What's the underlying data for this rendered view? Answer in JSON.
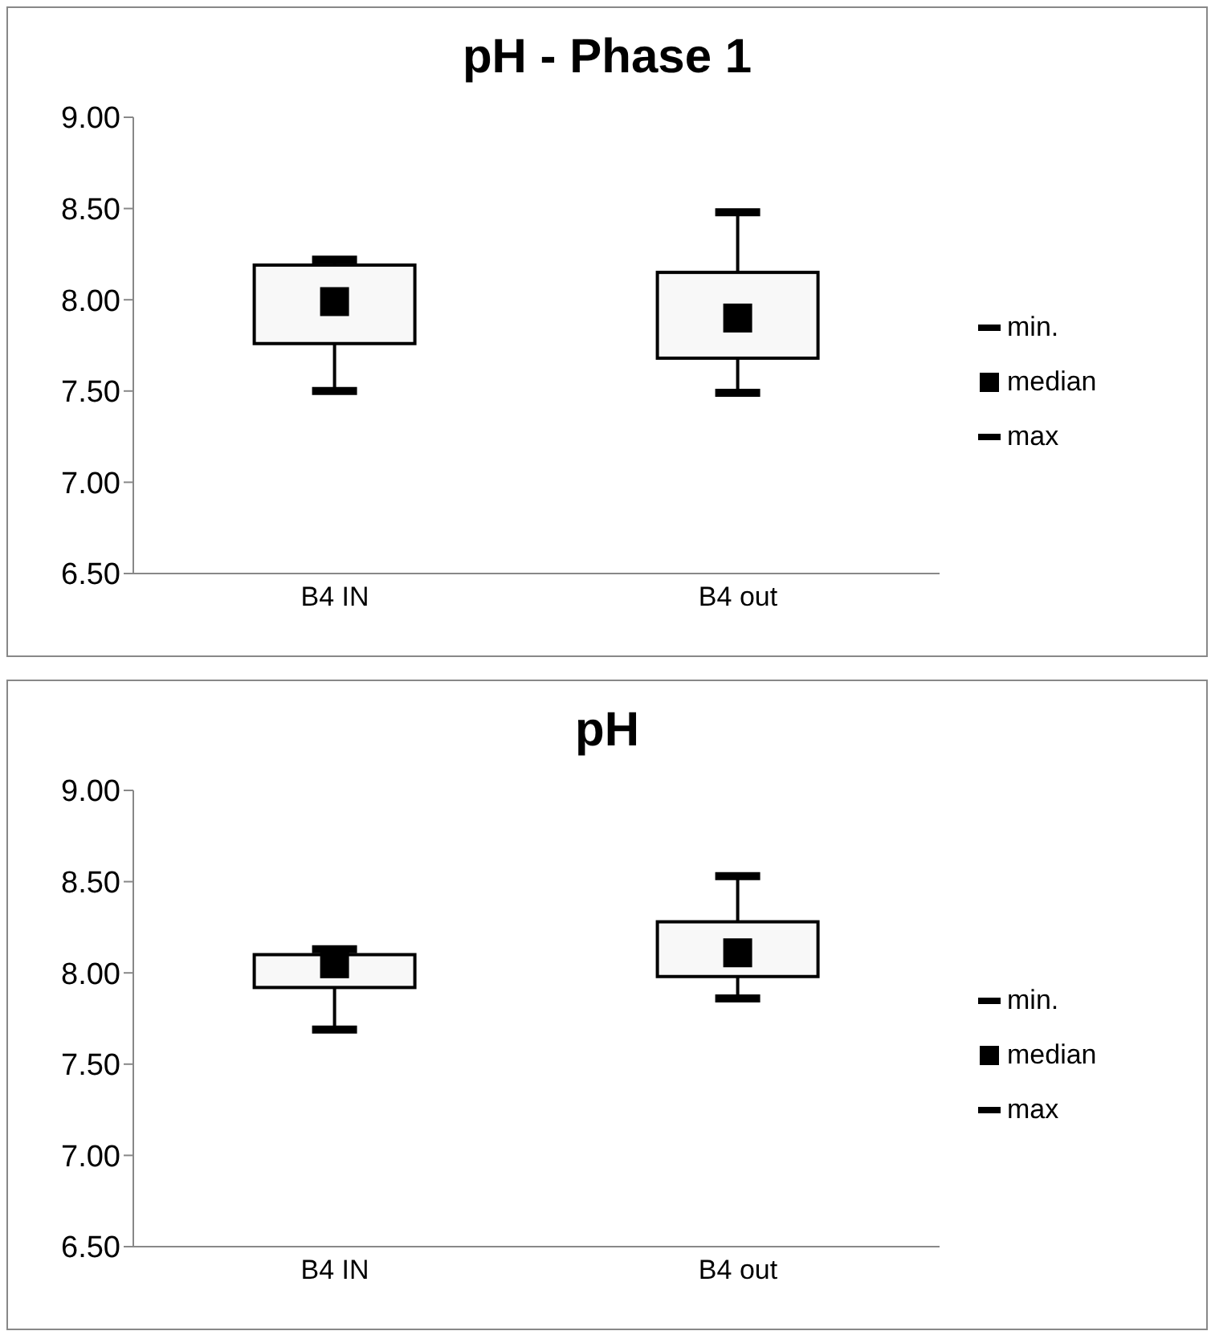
{
  "chart_data": [
    {
      "type": "box",
      "title": "pH - Phase 1",
      "categories": [
        "B4 IN",
        "B4 out"
      ],
      "boxes": [
        {
          "low": 7.5,
          "q1": 7.76,
          "median": 7.99,
          "q3": 8.19,
          "high": 8.22
        },
        {
          "low": 7.49,
          "q1": 7.68,
          "median": 7.9,
          "q3": 8.15,
          "high": 8.48
        }
      ],
      "annotations": [
        "min.",
        "median",
        "max"
      ],
      "color": "#f8f8f8",
      "ylim": [
        6.5,
        9
      ],
      "yticks": [
        {
          "value": 6.5,
          "label": "6.50"
        },
        {
          "value": 7,
          "label": "7.00"
        },
        {
          "value": 7.5,
          "label": "7.50"
        },
        {
          "value": 8,
          "label": "8.00"
        },
        {
          "value": 8.5,
          "label": "8.50"
        },
        {
          "value": 9,
          "label": "9.00"
        }
      ],
      "grid": false
    },
    {
      "type": "box",
      "title": "pH",
      "categories": [
        "B4 IN",
        "B4 out"
      ],
      "boxes": [
        {
          "low": 7.69,
          "q1": 7.92,
          "median": 8.05,
          "q3": 8.1,
          "high": 8.13
        },
        {
          "low": 7.86,
          "q1": 7.98,
          "median": 8.11,
          "q3": 8.28,
          "high": 8.53
        }
      ],
      "annotations": [
        "min.",
        "median",
        "max"
      ],
      "color": "#f8f8f8",
      "ylim": [
        6.5,
        9
      ],
      "yticks": [
        {
          "value": 6.5,
          "label": "6.50"
        },
        {
          "value": 7,
          "label": "7.00"
        },
        {
          "value": 7.5,
          "label": "7.50"
        },
        {
          "value": 8,
          "label": "8.00"
        },
        {
          "value": 8.5,
          "label": "8.50"
        },
        {
          "value": 9,
          "label": "9.00"
        }
      ],
      "grid": false
    }
  ]
}
